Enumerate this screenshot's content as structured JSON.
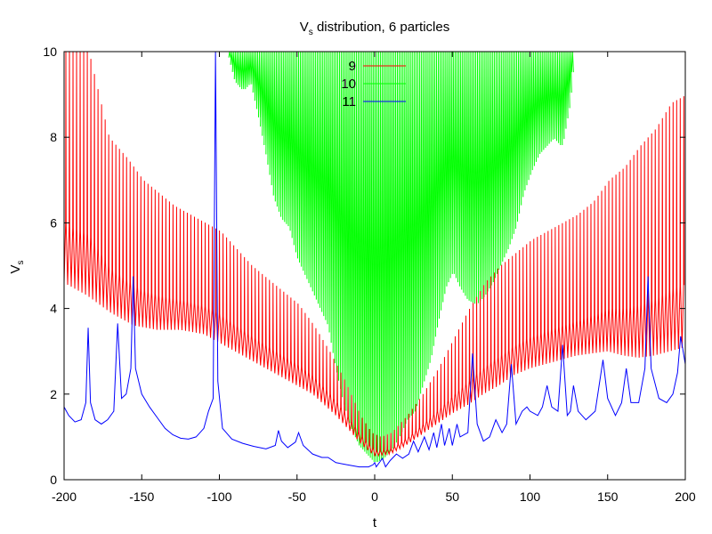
{
  "chart_data": {
    "type": "line",
    "title_main": "V",
    "title_sub": "s",
    "title_rest": " distribution, 6 particles",
    "xlabel": "t",
    "ylabel_main": "V",
    "ylabel_sub": "s",
    "xlim": [
      -200,
      200
    ],
    "ylim": [
      0,
      10
    ],
    "xticks": [
      -200,
      -150,
      -100,
      -50,
      0,
      50,
      100,
      150,
      200
    ],
    "yticks": [
      0,
      2,
      4,
      6,
      8,
      10
    ],
    "legend_position": "top-center",
    "series": [
      {
        "name": "9",
        "color": "#ff0000",
        "baseline": [
          [
            -200,
            4.6
          ],
          [
            -185,
            4.3
          ],
          [
            -170,
            3.9
          ],
          [
            -155,
            3.6
          ],
          [
            -140,
            3.5
          ],
          [
            -125,
            3.5
          ],
          [
            -110,
            3.4
          ],
          [
            -100,
            3.2
          ],
          [
            -85,
            2.9
          ],
          [
            -70,
            2.6
          ],
          [
            -55,
            2.3
          ],
          [
            -40,
            2.0
          ],
          [
            -25,
            1.5
          ],
          [
            -15,
            1.1
          ],
          [
            -8,
            0.8
          ],
          [
            0,
            0.55
          ],
          [
            10,
            0.6
          ],
          [
            20,
            0.8
          ],
          [
            30,
            1.05
          ],
          [
            40,
            1.3
          ],
          [
            50,
            1.55
          ],
          [
            60,
            1.75
          ],
          [
            70,
            2.0
          ],
          [
            80,
            2.2
          ],
          [
            90,
            2.45
          ],
          [
            100,
            2.6
          ],
          [
            110,
            2.7
          ],
          [
            120,
            2.8
          ],
          [
            130,
            2.9
          ],
          [
            140,
            2.95
          ],
          [
            150,
            3.0
          ],
          [
            160,
            2.9
          ],
          [
            170,
            2.85
          ],
          [
            180,
            2.9
          ],
          [
            190,
            3.0
          ],
          [
            200,
            3.1
          ]
        ],
        "peaks": [
          [
            -200,
            10
          ],
          [
            -185,
            10
          ],
          [
            -172,
            8.0
          ],
          [
            -160,
            7.5
          ],
          [
            -150,
            7.0
          ],
          [
            -140,
            6.7
          ],
          [
            -130,
            6.4
          ],
          [
            -120,
            6.2
          ],
          [
            -110,
            6.0
          ],
          [
            -100,
            5.8
          ],
          [
            -90,
            5.4
          ],
          [
            -80,
            5.0
          ],
          [
            -70,
            4.7
          ],
          [
            -60,
            4.4
          ],
          [
            -50,
            4.1
          ],
          [
            -40,
            3.6
          ],
          [
            -30,
            3.0
          ],
          [
            -20,
            2.3
          ],
          [
            -10,
            1.5
          ],
          [
            -3,
            1.1
          ],
          [
            3,
            1.0
          ],
          [
            10,
            1.1
          ],
          [
            20,
            1.5
          ],
          [
            30,
            2.0
          ],
          [
            40,
            2.6
          ],
          [
            50,
            3.3
          ],
          [
            60,
            4.0
          ],
          [
            70,
            4.6
          ],
          [
            80,
            5.0
          ],
          [
            90,
            5.3
          ],
          [
            100,
            5.6
          ],
          [
            110,
            5.8
          ],
          [
            120,
            6.0
          ],
          [
            130,
            6.2
          ],
          [
            140,
            6.5
          ],
          [
            150,
            7.0
          ],
          [
            160,
            7.3
          ],
          [
            170,
            7.8
          ],
          [
            180,
            8.2
          ],
          [
            190,
            8.8
          ],
          [
            200,
            9.0
          ]
        ],
        "period": 2.3
      },
      {
        "name": "10",
        "color": "#00ff00",
        "baseline": [
          [
            -100,
            10
          ],
          [
            -95,
            10
          ],
          [
            -90,
            9.3
          ],
          [
            -85,
            9.1
          ],
          [
            -80,
            9.3
          ],
          [
            -75,
            8.5
          ],
          [
            -70,
            7.6
          ],
          [
            -65,
            6.6
          ],
          [
            -60,
            6.1
          ],
          [
            -55,
            5.9
          ],
          [
            -50,
            5.2
          ],
          [
            -45,
            4.8
          ],
          [
            -40,
            4.4
          ],
          [
            -35,
            4.0
          ],
          [
            -30,
            3.6
          ],
          [
            -25,
            2.6
          ],
          [
            -20,
            1.8
          ],
          [
            -15,
            1.2
          ],
          [
            -10,
            0.8
          ],
          [
            -5,
            0.6
          ],
          [
            0,
            0.4
          ],
          [
            5,
            0.5
          ],
          [
            10,
            0.7
          ],
          [
            15,
            1.0
          ],
          [
            20,
            1.4
          ],
          [
            25,
            1.6
          ],
          [
            30,
            2.2
          ],
          [
            35,
            2.8
          ],
          [
            40,
            3.7
          ],
          [
            45,
            4.5
          ],
          [
            50,
            4.9
          ],
          [
            55,
            4.5
          ],
          [
            60,
            4.2
          ],
          [
            65,
            4.1
          ],
          [
            70,
            4.3
          ],
          [
            75,
            4.6
          ],
          [
            80,
            5.0
          ],
          [
            85,
            5.4
          ],
          [
            90,
            5.9
          ],
          [
            95,
            6.7
          ],
          [
            100,
            7.2
          ],
          [
            105,
            7.6
          ],
          [
            110,
            7.8
          ],
          [
            115,
            8.0
          ],
          [
            120,
            7.8
          ],
          [
            125,
            8.8
          ],
          [
            128,
            10
          ]
        ],
        "peaks_top": 10,
        "start": -100,
        "end": 128,
        "period": 1.2
      },
      {
        "name": "11",
        "color": "#0000ff",
        "curve": [
          [
            -200,
            1.7
          ],
          [
            -197,
            1.5
          ],
          [
            -193,
            1.35
          ],
          [
            -189,
            1.4
          ],
          [
            -186,
            1.8
          ],
          [
            -184.5,
            3.55
          ],
          [
            -183,
            1.8
          ],
          [
            -180,
            1.4
          ],
          [
            -176,
            1.3
          ],
          [
            -172,
            1.4
          ],
          [
            -168,
            1.6
          ],
          [
            -165.5,
            3.65
          ],
          [
            -163,
            1.9
          ],
          [
            -160,
            2.0
          ],
          [
            -157,
            2.6
          ],
          [
            -155.5,
            4.75
          ],
          [
            -154,
            2.6
          ],
          [
            -150,
            2.0
          ],
          [
            -145,
            1.7
          ],
          [
            -140,
            1.45
          ],
          [
            -135,
            1.2
          ],
          [
            -130,
            1.05
          ],
          [
            -125,
            0.97
          ],
          [
            -120,
            0.95
          ],
          [
            -115,
            1.0
          ],
          [
            -110,
            1.2
          ],
          [
            -107,
            1.6
          ],
          [
            -104,
            1.9
          ],
          [
            -102.5,
            10
          ],
          [
            -101,
            2.3
          ],
          [
            -98,
            1.2
          ],
          [
            -92,
            0.95
          ],
          [
            -85,
            0.85
          ],
          [
            -78,
            0.78
          ],
          [
            -70,
            0.72
          ],
          [
            -64,
            0.8
          ],
          [
            -62,
            1.15
          ],
          [
            -60,
            0.9
          ],
          [
            -56,
            0.75
          ],
          [
            -51,
            0.88
          ],
          [
            -49,
            1.1
          ],
          [
            -46,
            0.8
          ],
          [
            -40,
            0.6
          ],
          [
            -34,
            0.52
          ],
          [
            -30,
            0.52
          ],
          [
            -25,
            0.4
          ],
          [
            -18,
            0.35
          ],
          [
            -10,
            0.3
          ],
          [
            -4,
            0.3
          ],
          [
            -1,
            0.35
          ],
          [
            0,
            0.4
          ],
          [
            1,
            0.3
          ],
          [
            3,
            0.4
          ],
          [
            5,
            0.5
          ],
          [
            7,
            0.3
          ],
          [
            10,
            0.45
          ],
          [
            14,
            0.6
          ],
          [
            18,
            0.5
          ],
          [
            22,
            0.6
          ],
          [
            25,
            0.9
          ],
          [
            28,
            0.65
          ],
          [
            32,
            1.0
          ],
          [
            35,
            0.7
          ],
          [
            38,
            1.1
          ],
          [
            40,
            0.75
          ],
          [
            43,
            1.3
          ],
          [
            45,
            0.8
          ],
          [
            48,
            1.2
          ],
          [
            50,
            0.8
          ],
          [
            53,
            1.3
          ],
          [
            55,
            1.0
          ],
          [
            60,
            1.1
          ],
          [
            63,
            2.95
          ],
          [
            66,
            1.3
          ],
          [
            70,
            0.9
          ],
          [
            74,
            1.0
          ],
          [
            78,
            1.4
          ],
          [
            82,
            1.1
          ],
          [
            85,
            1.3
          ],
          [
            88,
            2.7
          ],
          [
            91,
            1.3
          ],
          [
            95,
            1.6
          ],
          [
            98,
            1.7
          ],
          [
            100,
            1.6
          ],
          [
            105,
            1.5
          ],
          [
            108,
            1.7
          ],
          [
            111,
            2.2
          ],
          [
            114,
            1.7
          ],
          [
            118,
            1.6
          ],
          [
            121,
            3.15
          ],
          [
            124,
            1.5
          ],
          [
            126,
            1.6
          ],
          [
            128,
            2.2
          ],
          [
            131,
            1.6
          ],
          [
            136,
            1.4
          ],
          [
            142,
            1.6
          ],
          [
            147,
            2.8
          ],
          [
            150,
            1.9
          ],
          [
            155,
            1.5
          ],
          [
            159,
            1.8
          ],
          [
            162,
            2.6
          ],
          [
            165,
            1.8
          ],
          [
            170,
            1.8
          ],
          [
            174,
            2.6
          ],
          [
            176,
            4.75
          ],
          [
            178,
            2.6
          ],
          [
            183,
            1.9
          ],
          [
            188,
            1.8
          ],
          [
            192,
            2.0
          ],
          [
            195,
            2.5
          ],
          [
            197,
            3.35
          ],
          [
            200,
            2.7
          ]
        ]
      }
    ]
  }
}
